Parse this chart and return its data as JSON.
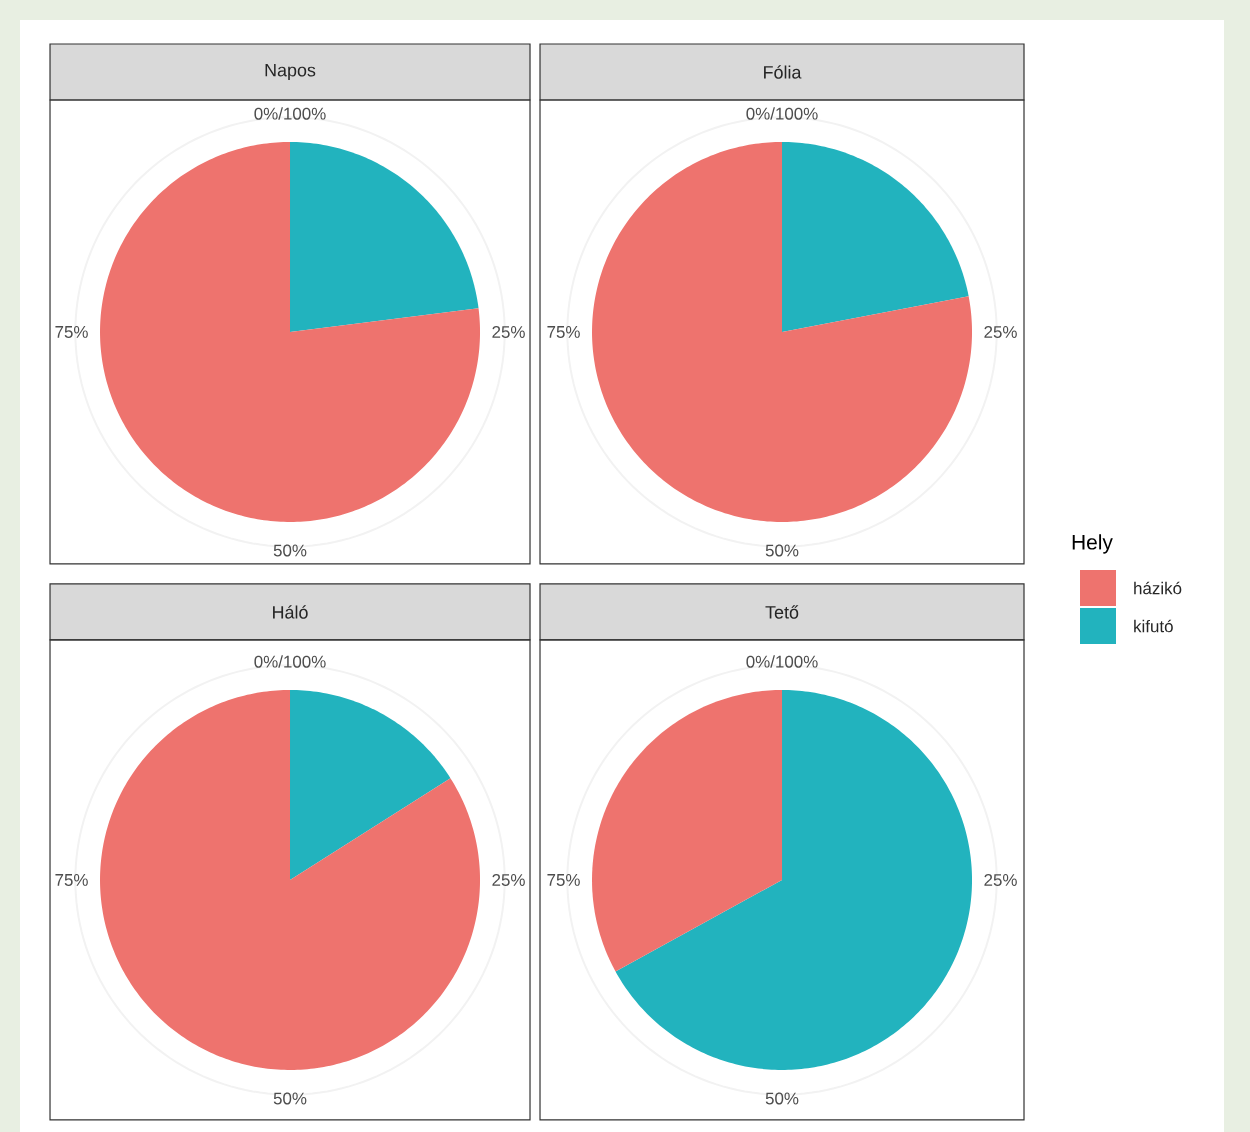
{
  "chart_data": {
    "type": "pie",
    "categories": [
      "házikó",
      "kifutó"
    ],
    "colors": [
      "#ee736e",
      "#22b3be"
    ],
    "legend": "right",
    "legend_title": "Hely",
    "grid": true,
    "annotations": [
      "0%/100%",
      "25%",
      "50%",
      "75%"
    ],
    "series": [
      {
        "name": "Napos",
        "values": [
          77,
          23
        ]
      },
      {
        "name": "Fólia",
        "values": [
          78,
          22
        ]
      },
      {
        "name": "Háló",
        "values": [
          84,
          16
        ]
      },
      {
        "name": "Tető",
        "values": [
          33,
          67
        ]
      }
    ]
  }
}
